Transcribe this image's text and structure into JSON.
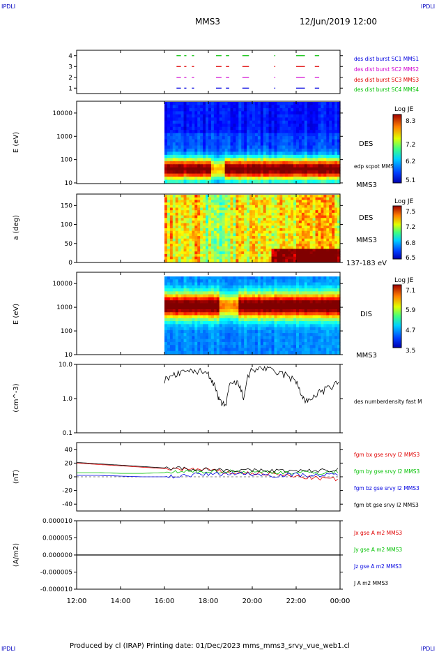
{
  "header": {
    "corner_tl": "IPDLI",
    "corner_tr": "IPDLI",
    "corner_bl": "IPDLI",
    "corner_br": "IPDLI",
    "spacecraft": "MMS3",
    "datetime": "12/Jun/2019 12:00"
  },
  "footer": {
    "text": "Produced by cl (IRAP)   Printing date: 01/Dec/2023   mms_mms3_srvy_vue_web1.cl"
  },
  "colors": {
    "red": "#e00000",
    "green": "#00c000",
    "blue": "#0000e0",
    "magenta": "#d000d0",
    "black": "#000000"
  },
  "chart_data": [
    {
      "type": "scatter",
      "panel": "burst availability",
      "y_ticks": [
        "1",
        "2",
        "3",
        "4"
      ],
      "ylim": [
        0.5,
        4.5
      ],
      "labels": [
        {
          "text": "des dist burst SC1 MMS1",
          "color": "#0000e0"
        },
        {
          "text": "des dist burst SC2 MMS2",
          "color": "#d000d0"
        },
        {
          "text": "des dist burst SC3 MMS3",
          "color": "#e00000"
        },
        {
          "text": "des dist burst SC4 MMS4",
          "color": "#00c000"
        }
      ],
      "segments_hours": [
        [
          16.55,
          16.75
        ],
        [
          16.9,
          17.0
        ],
        [
          17.25,
          17.35
        ],
        [
          18.35,
          18.6
        ],
        [
          18.8,
          18.95
        ],
        [
          19.55,
          19.85
        ],
        [
          21.0,
          21.05
        ],
        [
          22.0,
          22.4
        ],
        [
          22.85,
          23.05
        ]
      ]
    },
    {
      "type": "heatmap",
      "panel": "DES energy spectrogram",
      "ylabel": "E (eV)",
      "yscale": "log",
      "y_ticks": [
        "10",
        "100",
        "1000",
        "10000"
      ],
      "side_label": "DES",
      "side_label2": "edp scpot MMS3",
      "side_label3": "MMS3",
      "colorbar": {
        "title": "Log JE",
        "ticks": [
          "8.3",
          "7.2",
          "6.2",
          "5.1"
        ]
      },
      "data_start_hour": 16.0
    },
    {
      "type": "heatmap",
      "panel": "DES pitch angle",
      "ylabel": "a (deg)",
      "y_ticks": [
        "0",
        "50",
        "100",
        "150"
      ],
      "ylim": [
        0,
        180
      ],
      "side_label": "DES",
      "side_label2": "MMS3",
      "side_label3": "137-183 eV",
      "colorbar": {
        "title": "Log JE",
        "ticks": [
          "7.5",
          "7.2",
          "6.8",
          "6.5"
        ]
      },
      "data_start_hour": 16.0
    },
    {
      "type": "heatmap",
      "panel": "DIS energy spectrogram",
      "ylabel": "E (eV)",
      "yscale": "log",
      "y_ticks": [
        "10",
        "100",
        "1000",
        "10000"
      ],
      "side_label": "DIS",
      "side_label2": "MMS3",
      "colorbar": {
        "title": "Log JE",
        "ticks": [
          "7.1",
          "5.9",
          "4.7",
          "3.5"
        ]
      },
      "data_start_hour": 16.0
    },
    {
      "type": "line",
      "panel": "density",
      "ylabel": "(cm^-3)",
      "yscale": "log",
      "y_ticks": [
        "0.1",
        "1.0",
        "10.0"
      ],
      "ylim": [
        0.1,
        10
      ],
      "series": [
        {
          "name": "des numberdensity fast M",
          "color": "#000000",
          "x": [
            16.0,
            16.5,
            17.0,
            17.5,
            18.0,
            18.3,
            18.5,
            18.8,
            19.0,
            19.3,
            19.6,
            20.0,
            20.5,
            21.0,
            21.5,
            22.0,
            22.3,
            22.6,
            23.0,
            23.5,
            24.0
          ],
          "y": [
            3.5,
            5.0,
            6.0,
            6.5,
            5.5,
            2.0,
            0.8,
            0.6,
            2.5,
            3.0,
            1.0,
            7.0,
            8.0,
            6.0,
            5.0,
            3.0,
            1.0,
            0.8,
            1.5,
            2.0,
            3.0
          ]
        }
      ]
    },
    {
      "type": "line",
      "panel": "magnetic field",
      "ylabel": "(nT)",
      "y_ticks": [
        "-40",
        "-20",
        "0",
        "20",
        "40"
      ],
      "ylim": [
        -50,
        50
      ],
      "series": [
        {
          "name": "fgm bx gse srvy l2 MMS3",
          "color": "#e00000",
          "x": [
            12,
            13,
            14,
            15,
            16,
            17,
            18,
            19,
            20,
            21,
            22,
            23,
            24
          ],
          "y": [
            20,
            18,
            16,
            14,
            12,
            11,
            10,
            6,
            5,
            4,
            0,
            -2,
            -4
          ]
        },
        {
          "name": "fgm by gse srvy l2 MMS3",
          "color": "#00c000",
          "x": [
            12,
            13,
            14,
            15,
            16,
            17,
            18,
            19,
            20,
            21,
            22,
            23,
            24
          ],
          "y": [
            6,
            6,
            5,
            5,
            6,
            7,
            8,
            8,
            7,
            7,
            6,
            6,
            7
          ]
        },
        {
          "name": "fgm bz gse srvy l2 MMS3",
          "color": "#0000e0",
          "x": [
            12,
            13,
            14,
            15,
            16,
            17,
            18,
            19,
            20,
            21,
            22,
            23,
            24
          ],
          "y": [
            2,
            2,
            1,
            0,
            0,
            2,
            4,
            5,
            4,
            2,
            3,
            2,
            3
          ]
        },
        {
          "name": "fgm bt gse srvy l2 MMS3",
          "color": "#000000",
          "x": [
            12,
            13,
            14,
            15,
            16,
            17,
            18,
            19,
            20,
            21,
            22,
            23,
            24
          ],
          "y": [
            21,
            19,
            17,
            15,
            13,
            12,
            11,
            10,
            9,
            9,
            8,
            9,
            10
          ]
        }
      ]
    },
    {
      "type": "line",
      "panel": "current density",
      "ylabel": "(A/m2)",
      "y_ticks": [
        "-0.000010",
        "-0.000005",
        "0.000000",
        "0.000005",
        "0.000010"
      ],
      "ylim": [
        -1e-05,
        1e-05
      ],
      "series": [
        {
          "name": "Jx gse A m2 MMS3",
          "color": "#e00000",
          "x": [
            12,
            24
          ],
          "y": [
            0,
            0
          ]
        },
        {
          "name": "Jy gse A m2 MMS3",
          "color": "#00c000",
          "x": [
            12,
            24
          ],
          "y": [
            0,
            0
          ]
        },
        {
          "name": "Jz gse A m2 MMS3",
          "color": "#0000e0",
          "x": [
            12,
            24
          ],
          "y": [
            0,
            0
          ]
        },
        {
          "name": "J A m2 MMS3",
          "color": "#000000",
          "x": [
            12,
            24
          ],
          "y": [
            0,
            0
          ]
        }
      ],
      "xlabel": "",
      "x_ticks": [
        "12:00",
        "14:00",
        "16:00",
        "18:00",
        "20:00",
        "22:00",
        "00:00"
      ],
      "xlim_hours": [
        12,
        24
      ]
    }
  ]
}
